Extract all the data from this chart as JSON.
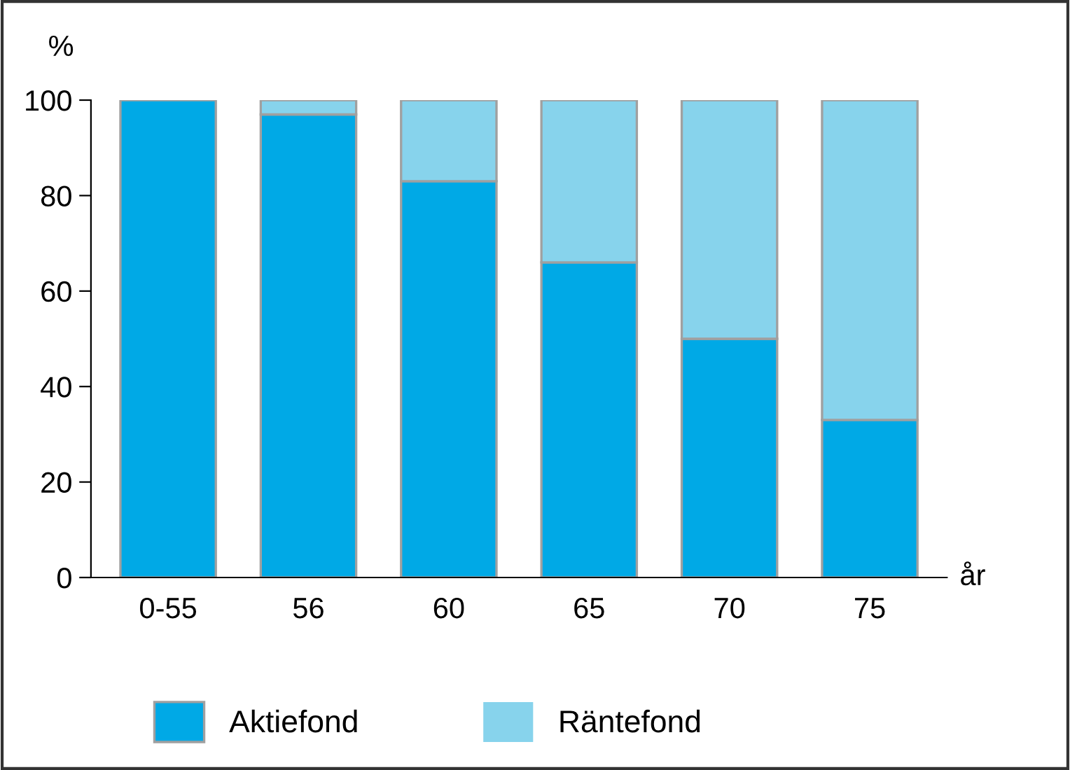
{
  "chart_data": {
    "type": "bar",
    "stacked": true,
    "ylabel": "%",
    "xlabel": "år",
    "categories": [
      "0-55",
      "56",
      "60",
      "65",
      "70",
      "75"
    ],
    "series": [
      {
        "name": "Aktiefond",
        "color": "#00a9e6",
        "values": [
          100,
          97,
          83,
          66,
          50,
          33
        ]
      },
      {
        "name": "Räntefond",
        "color": "#87d3ec",
        "values": [
          0,
          3,
          17,
          34,
          50,
          67
        ]
      }
    ],
    "ylim": [
      0,
      100
    ],
    "yticks": [
      0,
      20,
      40,
      60,
      80,
      100
    ],
    "grid": false,
    "legend": "bottom"
  }
}
